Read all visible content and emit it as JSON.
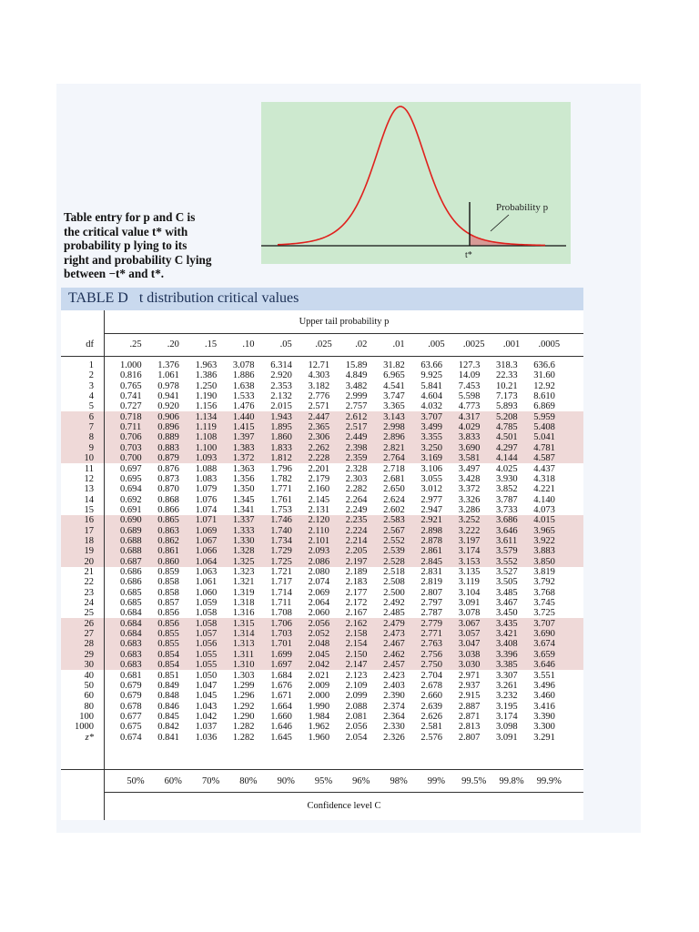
{
  "caption": {
    "lines": [
      "Table entry for p and C is",
      "the critical value t* with",
      "probability p lying to its",
      "right and probability C lying",
      "between −t* and t*."
    ]
  },
  "figure": {
    "prob_label": "Probability p",
    "tstar_label": "t*",
    "curve_color": "#e0201c",
    "shade_color": "#d79a96"
  },
  "table": {
    "title_prefix": "TABLE D",
    "title_name": "t distribution critical values",
    "upper_label": "Upper tail probability p",
    "df_header": "df",
    "columns": [
      ".25",
      ".20",
      ".15",
      ".10",
      ".05",
      ".025",
      ".02",
      ".01",
      ".005",
      ".0025",
      ".001",
      ".0005"
    ],
    "rows": [
      {
        "df": "1",
        "v": [
          "1.000",
          "1.376",
          "1.963",
          "3.078",
          "6.314",
          "12.71",
          "15.89",
          "31.82",
          "63.66",
          "127.3",
          "318.3",
          "636.6"
        ]
      },
      {
        "df": "2",
        "v": [
          "0.816",
          "1.061",
          "1.386",
          "1.886",
          "2.920",
          "4.303",
          "4.849",
          "6.965",
          "9.925",
          "14.09",
          "22.33",
          "31.60"
        ]
      },
      {
        "df": "3",
        "v": [
          "0.765",
          "0.978",
          "1.250",
          "1.638",
          "2.353",
          "3.182",
          "3.482",
          "4.541",
          "5.841",
          "7.453",
          "10.21",
          "12.92"
        ]
      },
      {
        "df": "4",
        "v": [
          "0.741",
          "0.941",
          "1.190",
          "1.533",
          "2.132",
          "2.776",
          "2.999",
          "3.747",
          "4.604",
          "5.598",
          "7.173",
          "8.610"
        ]
      },
      {
        "df": "5",
        "v": [
          "0.727",
          "0.920",
          "1.156",
          "1.476",
          "2.015",
          "2.571",
          "2.757",
          "3.365",
          "4.032",
          "4.773",
          "5.893",
          "6.869"
        ]
      },
      {
        "df": "6",
        "v": [
          "0.718",
          "0.906",
          "1.134",
          "1.440",
          "1.943",
          "2.447",
          "2.612",
          "3.143",
          "3.707",
          "4.317",
          "5.208",
          "5.959"
        ]
      },
      {
        "df": "7",
        "v": [
          "0.711",
          "0.896",
          "1.119",
          "1.415",
          "1.895",
          "2.365",
          "2.517",
          "2.998",
          "3.499",
          "4.029",
          "4.785",
          "5.408"
        ]
      },
      {
        "df": "8",
        "v": [
          "0.706",
          "0.889",
          "1.108",
          "1.397",
          "1.860",
          "2.306",
          "2.449",
          "2.896",
          "3.355",
          "3.833",
          "4.501",
          "5.041"
        ]
      },
      {
        "df": "9",
        "v": [
          "0.703",
          "0.883",
          "1.100",
          "1.383",
          "1.833",
          "2.262",
          "2.398",
          "2.821",
          "3.250",
          "3.690",
          "4.297",
          "4.781"
        ]
      },
      {
        "df": "10",
        "v": [
          "0.700",
          "0.879",
          "1.093",
          "1.372",
          "1.812",
          "2.228",
          "2.359",
          "2.764",
          "3.169",
          "3.581",
          "4.144",
          "4.587"
        ]
      },
      {
        "df": "11",
        "v": [
          "0.697",
          "0.876",
          "1.088",
          "1.363",
          "1.796",
          "2.201",
          "2.328",
          "2.718",
          "3.106",
          "3.497",
          "4.025",
          "4.437"
        ]
      },
      {
        "df": "12",
        "v": [
          "0.695",
          "0.873",
          "1.083",
          "1.356",
          "1.782",
          "2.179",
          "2.303",
          "2.681",
          "3.055",
          "3.428",
          "3.930",
          "4.318"
        ]
      },
      {
        "df": "13",
        "v": [
          "0.694",
          "0.870",
          "1.079",
          "1.350",
          "1.771",
          "2.160",
          "2.282",
          "2.650",
          "3.012",
          "3.372",
          "3.852",
          "4.221"
        ]
      },
      {
        "df": "14",
        "v": [
          "0.692",
          "0.868",
          "1.076",
          "1.345",
          "1.761",
          "2.145",
          "2.264",
          "2.624",
          "2.977",
          "3.326",
          "3.787",
          "4.140"
        ]
      },
      {
        "df": "15",
        "v": [
          "0.691",
          "0.866",
          "1.074",
          "1.341",
          "1.753",
          "2.131",
          "2.249",
          "2.602",
          "2.947",
          "3.286",
          "3.733",
          "4.073"
        ]
      },
      {
        "df": "16",
        "v": [
          "0.690",
          "0.865",
          "1.071",
          "1.337",
          "1.746",
          "2.120",
          "2.235",
          "2.583",
          "2.921",
          "3.252",
          "3.686",
          "4.015"
        ]
      },
      {
        "df": "17",
        "v": [
          "0.689",
          "0.863",
          "1.069",
          "1.333",
          "1.740",
          "2.110",
          "2.224",
          "2.567",
          "2.898",
          "3.222",
          "3.646",
          "3.965"
        ]
      },
      {
        "df": "18",
        "v": [
          "0.688",
          "0.862",
          "1.067",
          "1.330",
          "1.734",
          "2.101",
          "2.214",
          "2.552",
          "2.878",
          "3.197",
          "3.611",
          "3.922"
        ]
      },
      {
        "df": "19",
        "v": [
          "0.688",
          "0.861",
          "1.066",
          "1.328",
          "1.729",
          "2.093",
          "2.205",
          "2.539",
          "2.861",
          "3.174",
          "3.579",
          "3.883"
        ]
      },
      {
        "df": "20",
        "v": [
          "0.687",
          "0.860",
          "1.064",
          "1.325",
          "1.725",
          "2.086",
          "2.197",
          "2.528",
          "2.845",
          "3.153",
          "3.552",
          "3.850"
        ]
      },
      {
        "df": "21",
        "v": [
          "0.686",
          "0.859",
          "1.063",
          "1.323",
          "1.721",
          "2.080",
          "2.189",
          "2.518",
          "2.831",
          "3.135",
          "3.527",
          "3.819"
        ]
      },
      {
        "df": "22",
        "v": [
          "0.686",
          "0.858",
          "1.061",
          "1.321",
          "1.717",
          "2.074",
          "2.183",
          "2.508",
          "2.819",
          "3.119",
          "3.505",
          "3.792"
        ]
      },
      {
        "df": "23",
        "v": [
          "0.685",
          "0.858",
          "1.060",
          "1.319",
          "1.714",
          "2.069",
          "2.177",
          "2.500",
          "2.807",
          "3.104",
          "3.485",
          "3.768"
        ]
      },
      {
        "df": "24",
        "v": [
          "0.685",
          "0.857",
          "1.059",
          "1.318",
          "1.711",
          "2.064",
          "2.172",
          "2.492",
          "2.797",
          "3.091",
          "3.467",
          "3.745"
        ]
      },
      {
        "df": "25",
        "v": [
          "0.684",
          "0.856",
          "1.058",
          "1.316",
          "1.708",
          "2.060",
          "2.167",
          "2.485",
          "2.787",
          "3.078",
          "3.450",
          "3.725"
        ]
      },
      {
        "df": "26",
        "v": [
          "0.684",
          "0.856",
          "1.058",
          "1.315",
          "1.706",
          "2.056",
          "2.162",
          "2.479",
          "2.779",
          "3.067",
          "3.435",
          "3.707"
        ]
      },
      {
        "df": "27",
        "v": [
          "0.684",
          "0.855",
          "1.057",
          "1.314",
          "1.703",
          "2.052",
          "2.158",
          "2.473",
          "2.771",
          "3.057",
          "3.421",
          "3.690"
        ]
      },
      {
        "df": "28",
        "v": [
          "0.683",
          "0.855",
          "1.056",
          "1.313",
          "1.701",
          "2.048",
          "2.154",
          "2.467",
          "2.763",
          "3.047",
          "3.408",
          "3.674"
        ]
      },
      {
        "df": "29",
        "v": [
          "0.683",
          "0.854",
          "1.055",
          "1.311",
          "1.699",
          "2.045",
          "2.150",
          "2.462",
          "2.756",
          "3.038",
          "3.396",
          "3.659"
        ]
      },
      {
        "df": "30",
        "v": [
          "0.683",
          "0.854",
          "1.055",
          "1.310",
          "1.697",
          "2.042",
          "2.147",
          "2.457",
          "2.750",
          "3.030",
          "3.385",
          "3.646"
        ]
      },
      {
        "df": "40",
        "v": [
          "0.681",
          "0.851",
          "1.050",
          "1.303",
          "1.684",
          "2.021",
          "2.123",
          "2.423",
          "2.704",
          "2.971",
          "3.307",
          "3.551"
        ]
      },
      {
        "df": "50",
        "v": [
          "0.679",
          "0.849",
          "1.047",
          "1.299",
          "1.676",
          "2.009",
          "2.109",
          "2.403",
          "2.678",
          "2.937",
          "3.261",
          "3.496"
        ]
      },
      {
        "df": "60",
        "v": [
          "0.679",
          "0.848",
          "1.045",
          "1.296",
          "1.671",
          "2.000",
          "2.099",
          "2.390",
          "2.660",
          "2.915",
          "3.232",
          "3.460"
        ]
      },
      {
        "df": "80",
        "v": [
          "0.678",
          "0.846",
          "1.043",
          "1.292",
          "1.664",
          "1.990",
          "2.088",
          "2.374",
          "2.639",
          "2.887",
          "3.195",
          "3.416"
        ]
      },
      {
        "df": "100",
        "v": [
          "0.677",
          "0.845",
          "1.042",
          "1.290",
          "1.660",
          "1.984",
          "2.081",
          "2.364",
          "2.626",
          "2.871",
          "3.174",
          "3.390"
        ]
      },
      {
        "df": "1000",
        "v": [
          "0.675",
          "0.842",
          "1.037",
          "1.282",
          "1.646",
          "1.962",
          "2.056",
          "2.330",
          "2.581",
          "2.813",
          "3.098",
          "3.300"
        ]
      },
      {
        "df": "z*",
        "v": [
          "0.674",
          "0.841",
          "1.036",
          "1.282",
          "1.645",
          "1.960",
          "2.054",
          "2.326",
          "2.576",
          "2.807",
          "3.091",
          "3.291"
        ]
      }
    ],
    "confidence": [
      "50%",
      "60%",
      "70%",
      "80%",
      "90%",
      "95%",
      "96%",
      "98%",
      "99%",
      "99.5%",
      "99.8%",
      "99.9%"
    ],
    "conf_label": "Confidence level C",
    "band_color": "#efd9d8"
  }
}
